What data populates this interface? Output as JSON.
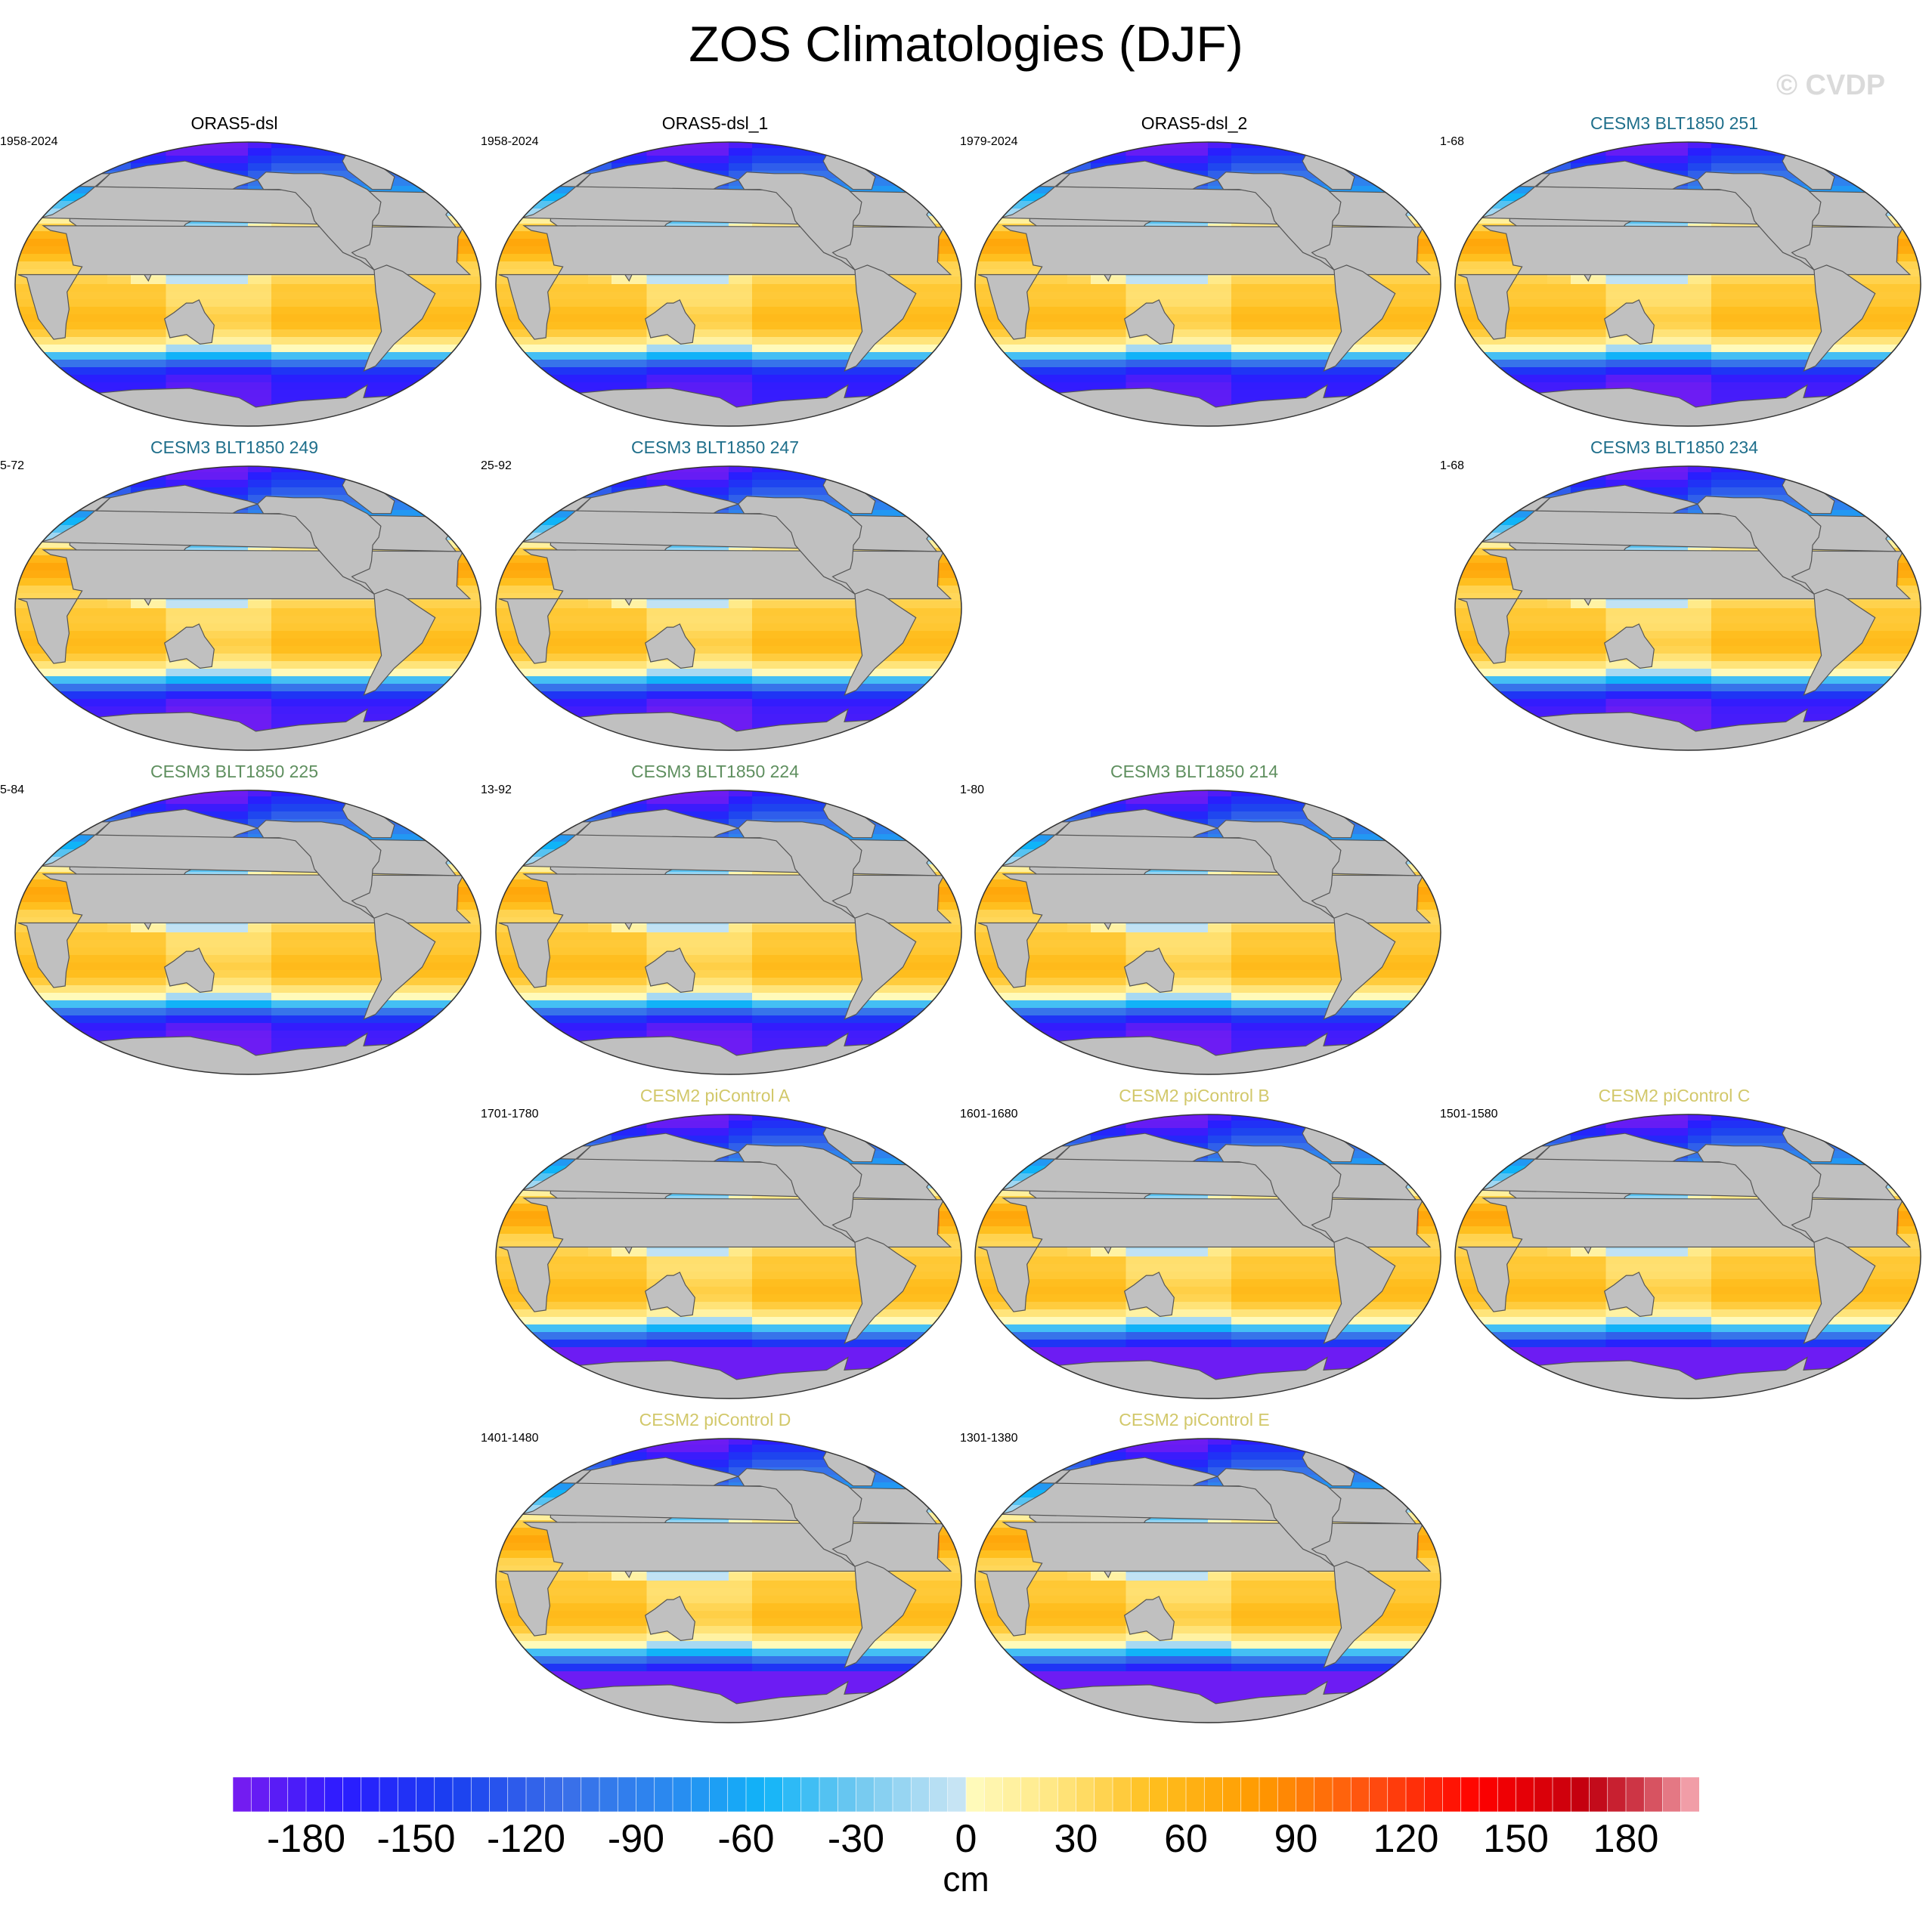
{
  "title": "ZOS Climatologies (DJF)",
  "credit": "© CVDP",
  "colors": {
    "land": "#c0c0c0",
    "coast": "#555555",
    "obs_title": "#000000",
    "cesm3_25x_title": "#1f6f8b",
    "cesm3_2xx_title": "#5f8f5f",
    "cesm2_title": "#d2c86a"
  },
  "panels": [
    {
      "title": "ORAS5-dsl",
      "years": "1958-2024",
      "group": "obs",
      "row": 0,
      "col": 0
    },
    {
      "title": "ORAS5-dsl_1",
      "years": "1958-2024",
      "group": "obs",
      "row": 0,
      "col": 1
    },
    {
      "title": "ORAS5-dsl_2",
      "years": "1979-2024",
      "group": "obs",
      "row": 0,
      "col": 2
    },
    {
      "title": "CESM3 BLT1850 251",
      "years": "1-68",
      "group": "cesm3a",
      "row": 0,
      "col": 3
    },
    {
      "title": "CESM3 BLT1850 249",
      "years": "5-72",
      "group": "cesm3a",
      "row": 1,
      "col": 0
    },
    {
      "title": "CESM3 BLT1850 247",
      "years": "25-92",
      "group": "cesm3a",
      "row": 1,
      "col": 1
    },
    {
      "title": "CESM3 BLT1850 234",
      "years": "1-68",
      "group": "cesm3a",
      "row": 1,
      "col": 3
    },
    {
      "title": "CESM3 BLT1850 225",
      "years": "5-84",
      "group": "cesm3b",
      "row": 2,
      "col": 0
    },
    {
      "title": "CESM3 BLT1850 224",
      "years": "13-92",
      "group": "cesm3b",
      "row": 2,
      "col": 1
    },
    {
      "title": "CESM3 BLT1850 214",
      "years": "1-80",
      "group": "cesm3b",
      "row": 2,
      "col": 2
    },
    {
      "title": "CESM2 piControl A",
      "years": "1701-1780",
      "group": "cesm2",
      "row": 3,
      "col": 1
    },
    {
      "title": "CESM2 piControl B",
      "years": "1601-1680",
      "group": "cesm2",
      "row": 3,
      "col": 2
    },
    {
      "title": "CESM2 piControl C",
      "years": "1501-1580",
      "group": "cesm2",
      "row": 3,
      "col": 3
    },
    {
      "title": "CESM2 piControl D",
      "years": "1401-1480",
      "group": "cesm2",
      "row": 4,
      "col": 1
    },
    {
      "title": "CESM2 piControl E",
      "years": "1301-1380",
      "group": "cesm2",
      "row": 4,
      "col": 2
    }
  ],
  "colorbar": {
    "unit": "cm",
    "min": -200,
    "max": 200,
    "step": 5,
    "tick_labels": [
      "-180",
      "-150",
      "-120",
      "-90",
      "-60",
      "-30",
      "0",
      "30",
      "60",
      "90",
      "120",
      "150",
      "180"
    ],
    "tick_values": [
      -180,
      -150,
      -120,
      -90,
      -60,
      -30,
      0,
      30,
      60,
      90,
      120,
      150,
      180
    ],
    "color_stops": [
      {
        "v": -200,
        "c": "#7a1cf0"
      },
      {
        "v": -170,
        "c": "#2a1cff"
      },
      {
        "v": -140,
        "c": "#1a40f0"
      },
      {
        "v": -110,
        "c": "#3a6ee8"
      },
      {
        "v": -80,
        "c": "#2a8af0"
      },
      {
        "v": -55,
        "c": "#10b4f8"
      },
      {
        "v": -30,
        "c": "#70c8f0"
      },
      {
        "v": -2,
        "c": "#c8e4f4"
      },
      {
        "v": 0,
        "c": "#fffcc0"
      },
      {
        "v": 25,
        "c": "#ffe680"
      },
      {
        "v": 50,
        "c": "#ffc020"
      },
      {
        "v": 80,
        "c": "#ff9a00"
      },
      {
        "v": 110,
        "c": "#ff5010"
      },
      {
        "v": 140,
        "c": "#ff0000"
      },
      {
        "v": 170,
        "c": "#c00010"
      },
      {
        "v": 185,
        "c": "#d04050"
      },
      {
        "v": 200,
        "c": "#f8b0b8"
      }
    ]
  }
}
